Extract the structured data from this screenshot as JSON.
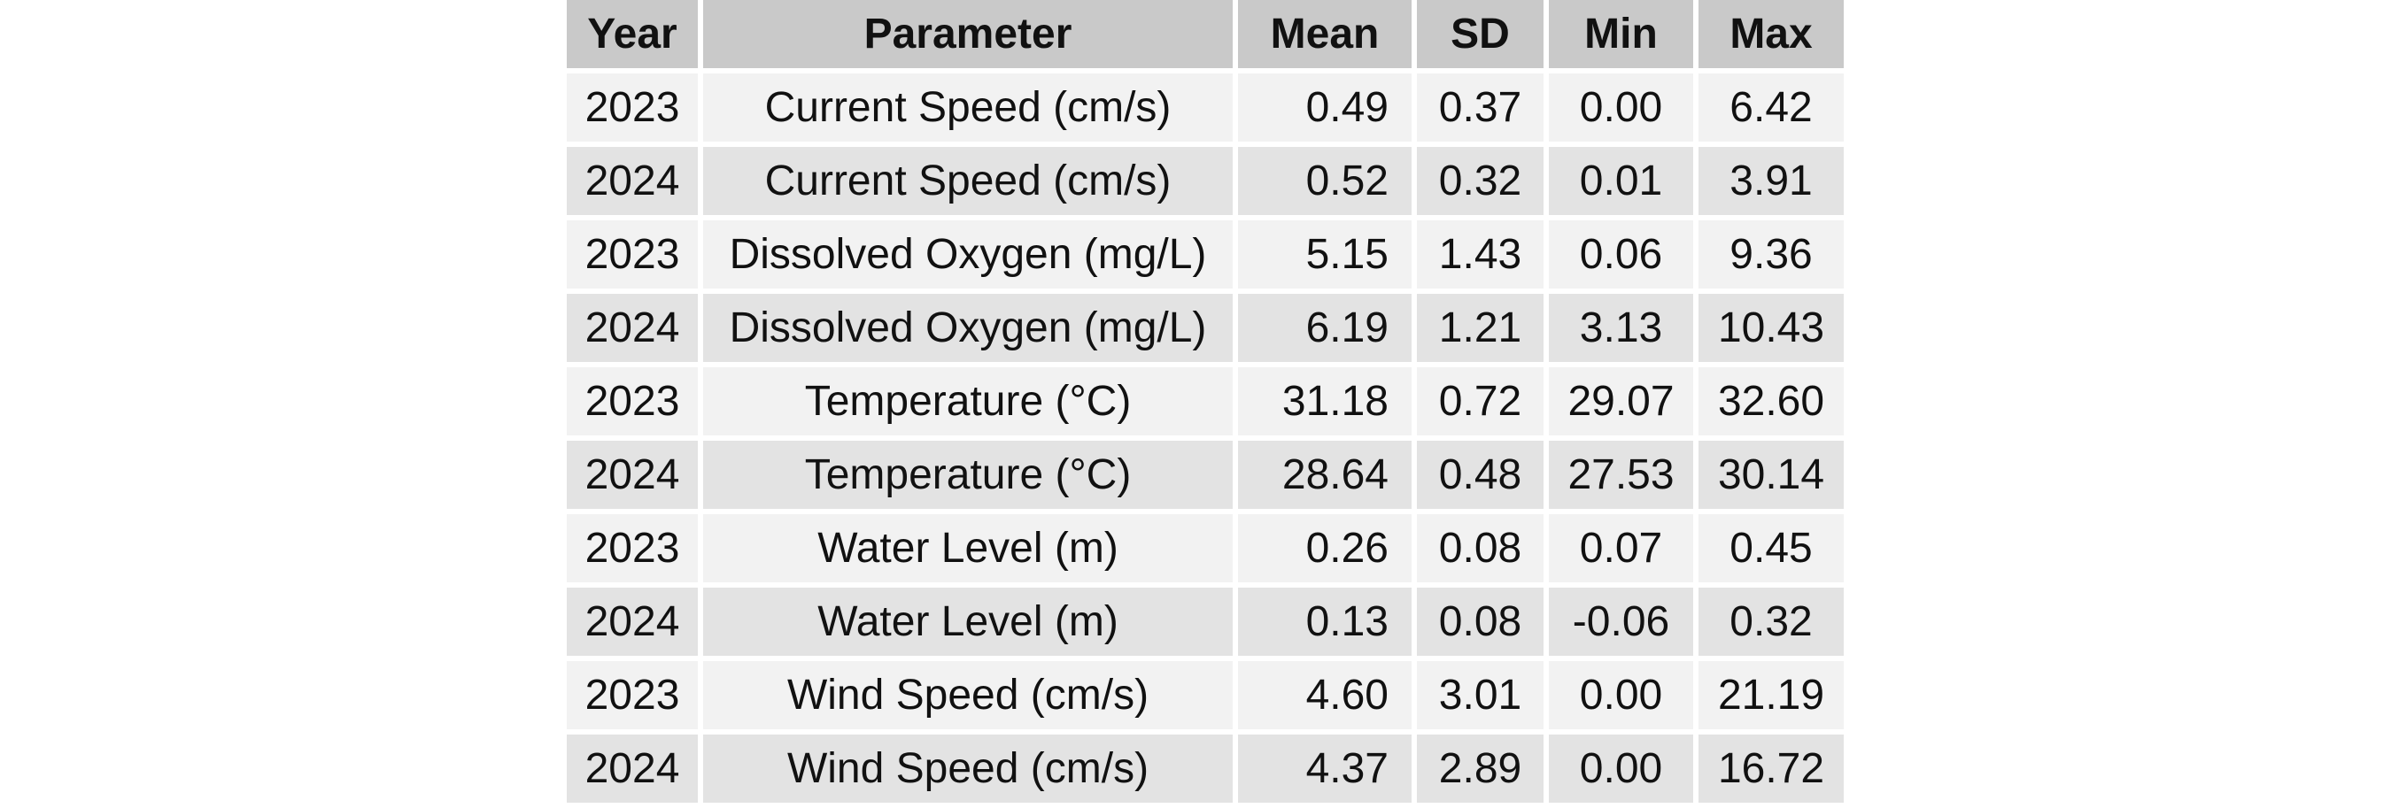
{
  "chart_data": {
    "type": "table",
    "columns": [
      "Year",
      "Parameter",
      "Mean",
      "SD",
      "Min",
      "Max"
    ],
    "rows": [
      [
        "2023",
        "Current Speed (cm/s)",
        "0.49",
        "0.37",
        "0.00",
        "6.42"
      ],
      [
        "2024",
        "Current Speed (cm/s)",
        "0.52",
        "0.32",
        "0.01",
        "3.91"
      ],
      [
        "2023",
        "Dissolved Oxygen (mg/L)",
        "5.15",
        "1.43",
        "0.06",
        "9.36"
      ],
      [
        "2024",
        "Dissolved Oxygen (mg/L)",
        "6.19",
        "1.21",
        "3.13",
        "10.43"
      ],
      [
        "2023",
        "Temperature (°C)",
        "31.18",
        "0.72",
        "29.07",
        "32.60"
      ],
      [
        "2024",
        "Temperature (°C)",
        "28.64",
        "0.48",
        "27.53",
        "30.14"
      ],
      [
        "2023",
        "Water Level (m)",
        "0.26",
        "0.08",
        "0.07",
        "0.45"
      ],
      [
        "2024",
        "Water Level (m)",
        "0.13",
        "0.08",
        "-0.06",
        "0.32"
      ],
      [
        "2023",
        "Wind Speed (cm/s)",
        "4.60",
        "3.01",
        "0.00",
        "21.19"
      ],
      [
        "2024",
        "Wind Speed (cm/s)",
        "4.37",
        "2.89",
        "0.00",
        "16.72"
      ]
    ],
    "colors": {
      "header_bg": "#c9c9c9",
      "row_odd_bg": "#f2f2f2",
      "row_even_bg": "#e3e3e3"
    }
  }
}
